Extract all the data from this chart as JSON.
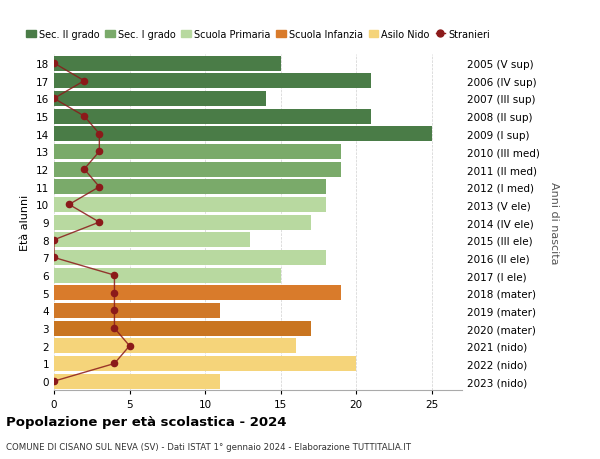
{
  "ages": [
    18,
    17,
    16,
    15,
    14,
    13,
    12,
    11,
    10,
    9,
    8,
    7,
    6,
    5,
    4,
    3,
    2,
    1,
    0
  ],
  "right_labels": [
    "2005 (V sup)",
    "2006 (IV sup)",
    "2007 (III sup)",
    "2008 (II sup)",
    "2009 (I sup)",
    "2010 (III med)",
    "2011 (II med)",
    "2012 (I med)",
    "2013 (V ele)",
    "2014 (IV ele)",
    "2015 (III ele)",
    "2016 (II ele)",
    "2017 (I ele)",
    "2018 (mater)",
    "2019 (mater)",
    "2020 (mater)",
    "2021 (nido)",
    "2022 (nido)",
    "2023 (nido)"
  ],
  "bar_values": [
    15,
    21,
    14,
    21,
    25,
    19,
    19,
    18,
    18,
    17,
    13,
    18,
    15,
    19,
    11,
    17,
    16,
    20,
    11
  ],
  "bar_colors": [
    "#4a7c47",
    "#4a7c47",
    "#4a7c47",
    "#4a7c47",
    "#4a7c47",
    "#7aaa6a",
    "#7aaa6a",
    "#7aaa6a",
    "#b8d9a0",
    "#b8d9a0",
    "#b8d9a0",
    "#b8d9a0",
    "#b8d9a0",
    "#d97b2b",
    "#d07828",
    "#c97520",
    "#f5d47a",
    "#f5d47a",
    "#f5d47a"
  ],
  "stranieri_values": [
    0,
    2,
    0,
    2,
    3,
    3,
    2,
    3,
    1,
    3,
    0,
    0,
    4,
    4,
    4,
    4,
    5,
    4,
    0
  ],
  "stranieri_color": "#8b1a1a",
  "legend_labels": [
    "Sec. II grado",
    "Sec. I grado",
    "Scuola Primaria",
    "Scuola Infanzia",
    "Asilo Nido",
    "Stranieri"
  ],
  "legend_colors": [
    "#4a7c47",
    "#7aaa6a",
    "#b8d9a0",
    "#d97b2b",
    "#f5d47a",
    "#8b1a1a"
  ],
  "title1": "Popolazione per età scolastica - 2024",
  "title2": "COMUNE DI CISANO SUL NEVA (SV) - Dati ISTAT 1° gennaio 2024 - Elaborazione TUTTITALIA.IT",
  "ylabel_left": "Età alunni",
  "ylabel_right": "Anni di nascita",
  "xlim": [
    0,
    27
  ],
  "background_color": "#ffffff",
  "grid_color": "#d0d0d0"
}
